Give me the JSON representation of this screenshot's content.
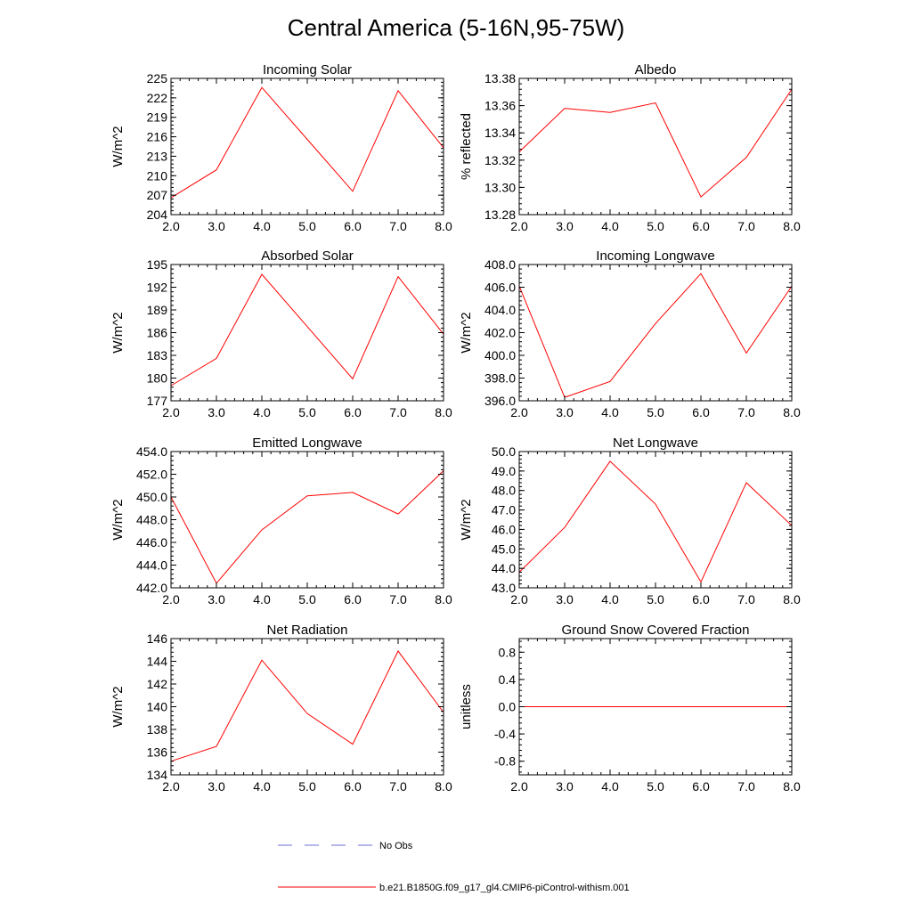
{
  "page": {
    "title": "Central America (5-16N,95-75W)"
  },
  "legend": {
    "entries": [
      {
        "label": "No Obs",
        "color": "#6b6fd6",
        "style": "dashed"
      },
      {
        "label": "b.e21.B1850G.f09_g17_gl4.CMIP6-piControl-withism.001",
        "color": "#ff0000",
        "style": "solid"
      }
    ]
  },
  "chart_data": [
    {
      "type": "line",
      "title": "Incoming Solar",
      "ylabel": "W/m^2",
      "xlabel": "",
      "xlim": [
        2.0,
        8.0
      ],
      "ylim": [
        204,
        225
      ],
      "xticks": [
        2.0,
        3.0,
        4.0,
        5.0,
        6.0,
        7.0,
        8.0
      ],
      "xtick_labels": [
        "2.0",
        "3.0",
        "4.0",
        "5.0",
        "6.0",
        "7.0",
        "8.0"
      ],
      "yticks": [
        204,
        207,
        210,
        213,
        216,
        219,
        222,
        225
      ],
      "ytick_labels": [
        "204",
        "207",
        "210",
        "213",
        "216",
        "219",
        "222",
        "225"
      ],
      "series": [
        {
          "name": "b.e21.B1850G.f09_g17_gl4.CMIP6-piControl-withism.001",
          "color": "#ff0000",
          "x": [
            2,
            3,
            4,
            5,
            6,
            7,
            8
          ],
          "values": [
            206.6,
            210.9,
            223.6,
            215.6,
            207.6,
            223.1,
            214.3
          ]
        }
      ]
    },
    {
      "type": "line",
      "title": "Albedo",
      "ylabel": "% reflected",
      "xlabel": "",
      "xlim": [
        2.0,
        8.0
      ],
      "ylim": [
        13.28,
        13.38
      ],
      "xticks": [
        2.0,
        3.0,
        4.0,
        5.0,
        6.0,
        7.0,
        8.0
      ],
      "xtick_labels": [
        "2.0",
        "3.0",
        "4.0",
        "5.0",
        "6.0",
        "7.0",
        "8.0"
      ],
      "yticks": [
        13.28,
        13.3,
        13.32,
        13.34,
        13.36,
        13.38
      ],
      "ytick_labels": [
        "13.28",
        "13.30",
        "13.32",
        "13.34",
        "13.36",
        "13.38"
      ],
      "series": [
        {
          "name": "b.e21.B1850G.f09_g17_gl4.CMIP6-piControl-withism.001",
          "color": "#ff0000",
          "x": [
            2,
            3,
            4,
            5,
            6,
            7,
            8
          ],
          "values": [
            13.326,
            13.358,
            13.355,
            13.362,
            13.293,
            13.322,
            13.372
          ]
        }
      ]
    },
    {
      "type": "line",
      "title": "Absorbed Solar",
      "ylabel": "W/m^2",
      "xlabel": "",
      "xlim": [
        2.0,
        8.0
      ],
      "ylim": [
        177,
        195
      ],
      "xticks": [
        2.0,
        3.0,
        4.0,
        5.0,
        6.0,
        7.0,
        8.0
      ],
      "xtick_labels": [
        "2.0",
        "3.0",
        "4.0",
        "5.0",
        "6.0",
        "7.0",
        "8.0"
      ],
      "yticks": [
        177,
        180,
        183,
        186,
        189,
        192,
        195
      ],
      "ytick_labels": [
        "177",
        "180",
        "183",
        "186",
        "189",
        "192",
        "195"
      ],
      "series": [
        {
          "name": "b.e21.B1850G.f09_g17_gl4.CMIP6-piControl-withism.001",
          "color": "#ff0000",
          "x": [
            2,
            3,
            4,
            5,
            6,
            7,
            8
          ],
          "values": [
            179.0,
            182.6,
            193.7,
            186.8,
            179.9,
            193.4,
            185.8
          ]
        }
      ]
    },
    {
      "type": "line",
      "title": "Incoming Longwave",
      "ylabel": "W/m^2",
      "xlabel": "",
      "xlim": [
        2.0,
        8.0
      ],
      "ylim": [
        396.0,
        408.0
      ],
      "xticks": [
        2.0,
        3.0,
        4.0,
        5.0,
        6.0,
        7.0,
        8.0
      ],
      "xtick_labels": [
        "2.0",
        "3.0",
        "4.0",
        "5.0",
        "6.0",
        "7.0",
        "8.0"
      ],
      "yticks": [
        396.0,
        398.0,
        400.0,
        402.0,
        404.0,
        406.0,
        408.0
      ],
      "ytick_labels": [
        "396.0",
        "398.0",
        "400.0",
        "402.0",
        "404.0",
        "406.0",
        "408.0"
      ],
      "series": [
        {
          "name": "b.e21.B1850G.f09_g17_gl4.CMIP6-piControl-withism.001",
          "color": "#ff0000",
          "x": [
            2,
            3,
            4,
            5,
            6,
            7,
            8
          ],
          "values": [
            406.1,
            396.3,
            397.7,
            402.8,
            407.2,
            400.2,
            406.1
          ]
        }
      ]
    },
    {
      "type": "line",
      "title": "Emitted Longwave",
      "ylabel": "W/m^2",
      "xlabel": "",
      "xlim": [
        2.0,
        8.0
      ],
      "ylim": [
        442.0,
        454.0
      ],
      "xticks": [
        2.0,
        3.0,
        4.0,
        5.0,
        6.0,
        7.0,
        8.0
      ],
      "xtick_labels": [
        "2.0",
        "3.0",
        "4.0",
        "5.0",
        "6.0",
        "7.0",
        "8.0"
      ],
      "yticks": [
        442.0,
        444.0,
        446.0,
        448.0,
        450.0,
        452.0,
        454.0
      ],
      "ytick_labels": [
        "442.0",
        "444.0",
        "446.0",
        "448.0",
        "450.0",
        "452.0",
        "454.0"
      ],
      "series": [
        {
          "name": "b.e21.B1850G.f09_g17_gl4.CMIP6-piControl-withism.001",
          "color": "#ff0000",
          "x": [
            2,
            3,
            4,
            5,
            6,
            7,
            8
          ],
          "values": [
            450.0,
            442.4,
            447.1,
            450.1,
            450.4,
            448.5,
            452.3
          ]
        }
      ]
    },
    {
      "type": "line",
      "title": "Net Longwave",
      "ylabel": "W/m^2",
      "xlabel": "",
      "xlim": [
        2.0,
        8.0
      ],
      "ylim": [
        43.0,
        50.0
      ],
      "xticks": [
        2.0,
        3.0,
        4.0,
        5.0,
        6.0,
        7.0,
        8.0
      ],
      "xtick_labels": [
        "2.0",
        "3.0",
        "4.0",
        "5.0",
        "6.0",
        "7.0",
        "8.0"
      ],
      "yticks": [
        43.0,
        44.0,
        45.0,
        46.0,
        47.0,
        48.0,
        49.0,
        50.0
      ],
      "ytick_labels": [
        "43.0",
        "44.0",
        "45.0",
        "46.0",
        "47.0",
        "48.0",
        "49.0",
        "50.0"
      ],
      "series": [
        {
          "name": "b.e21.B1850G.f09_g17_gl4.CMIP6-piControl-withism.001",
          "color": "#ff0000",
          "x": [
            2,
            3,
            4,
            5,
            6,
            7,
            8
          ],
          "values": [
            43.8,
            46.1,
            49.5,
            47.3,
            43.3,
            48.4,
            46.2
          ]
        }
      ]
    },
    {
      "type": "line",
      "title": "Net Radiation",
      "ylabel": "W/m^2",
      "xlabel": "",
      "xlim": [
        2.0,
        8.0
      ],
      "ylim": [
        134,
        146
      ],
      "xticks": [
        2.0,
        3.0,
        4.0,
        5.0,
        6.0,
        7.0,
        8.0
      ],
      "xtick_labels": [
        "2.0",
        "3.0",
        "4.0",
        "5.0",
        "6.0",
        "7.0",
        "8.0"
      ],
      "yticks": [
        134,
        136,
        138,
        140,
        142,
        144,
        146
      ],
      "ytick_labels": [
        "134",
        "136",
        "138",
        "140",
        "142",
        "144",
        "146"
      ],
      "series": [
        {
          "name": "b.e21.B1850G.f09_g17_gl4.CMIP6-piControl-withism.001",
          "color": "#ff0000",
          "x": [
            2,
            3,
            4,
            5,
            6,
            7,
            8
          ],
          "values": [
            135.2,
            136.5,
            144.1,
            139.4,
            136.7,
            144.9,
            139.5
          ]
        }
      ]
    },
    {
      "type": "line",
      "title": "Ground Snow Covered Fraction",
      "ylabel": "unitless",
      "xlabel": "",
      "xlim": [
        2.0,
        8.0
      ],
      "ylim": [
        -1.0,
        1.0
      ],
      "xticks": [
        2.0,
        3.0,
        4.0,
        5.0,
        6.0,
        7.0,
        8.0
      ],
      "xtick_labels": [
        "2.0",
        "3.0",
        "4.0",
        "5.0",
        "6.0",
        "7.0",
        "8.0"
      ],
      "yticks": [
        -0.8,
        -0.4,
        0.0,
        0.4,
        0.8
      ],
      "ytick_labels": [
        "-0.8",
        "-0.4",
        "0.0",
        "0.4",
        "0.8"
      ],
      "series": [
        {
          "name": "b.e21.B1850G.f09_g17_gl4.CMIP6-piControl-withism.001",
          "color": "#ff0000",
          "x": [
            2,
            3,
            4,
            5,
            6,
            7,
            8
          ],
          "values": [
            0.0,
            0.0,
            0.0,
            0.0,
            0.0,
            0.0,
            0.0
          ]
        }
      ]
    }
  ]
}
